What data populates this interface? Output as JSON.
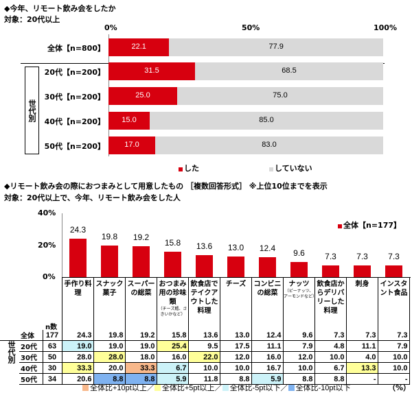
{
  "colors": {
    "did": "#d7000f",
    "not": "#d9d9d9",
    "plus10": "#f8b88b",
    "plus5": "#ffff99",
    "minus5": "#ccf2f8",
    "minus10": "#7fb2f0"
  },
  "chart_data": [
    {
      "type": "bar",
      "orientation": "horizontal",
      "stacked": true,
      "title": "◆今年、リモート飲み会をしたか",
      "subtitle": "対象：20代以上",
      "xticks": [
        "0%",
        "50%",
        "100%"
      ],
      "xlim": [
        0,
        100
      ],
      "group_label": "世代別",
      "categories": [
        "全体【n=800】",
        "20代【n=200】",
        "30代【n=200】",
        "40代【n=200】",
        "50代【n=200】"
      ],
      "series": [
        {
          "name": "した",
          "values": [
            22.1,
            31.5,
            25.0,
            15.0,
            17.0
          ]
        },
        {
          "name": "していない",
          "values": [
            77.9,
            68.5,
            75.0,
            85.0,
            83.0
          ]
        }
      ],
      "legend": "bottom"
    },
    {
      "type": "bar",
      "title": "◆リモート飲み会の際におつまみとして用意したもの ［複数回答形式］ ※上位10位までを表示",
      "subtitle": "対象：20代以上で、今年、リモート飲み会をした人",
      "yticks": [
        "40%",
        "20%",
        "0%"
      ],
      "ylim": [
        0,
        40
      ],
      "categories": [
        {
          "main": "手作り料理"
        },
        {
          "main": "スナック菓子"
        },
        {
          "main": "スーパーの総菜"
        },
        {
          "main": "おつまみ用の珍味類",
          "note": "（チーズ鱈、さきいかなど）"
        },
        {
          "main": "飲食店でテイクアウトした料理"
        },
        {
          "main": "チーズ"
        },
        {
          "main": "コンビニの総菜"
        },
        {
          "main": "ナッツ",
          "note": "（ピーナッツ、アーモンドなど）"
        },
        {
          "main": "飲食店からデリバリーした料理"
        },
        {
          "main": "刺身"
        },
        {
          "main": "インスタント食品"
        }
      ],
      "series": [
        {
          "name": "全体【n=177】",
          "values": [
            24.3,
            19.8,
            19.2,
            15.8,
            13.6,
            13.0,
            12.4,
            9.6,
            7.3,
            7.3,
            7.3
          ]
        }
      ],
      "legend": "top-right"
    }
  ],
  "table": {
    "n_header": "n数",
    "group_label": "世代別",
    "unit": "（%）",
    "rows": [
      {
        "label": "全体",
        "n": "177",
        "values": [
          "24.3",
          "19.8",
          "19.2",
          "15.8",
          "13.6",
          "13.0",
          "12.4",
          "9.6",
          "7.3",
          "7.3",
          "7.3"
        ],
        "hl": [
          "",
          "",
          "",
          "",
          "",
          "",
          "",
          "",
          "",
          "",
          ""
        ]
      },
      {
        "label": "20代",
        "n": "63",
        "values": [
          "19.0",
          "19.0",
          "19.0",
          "25.4",
          "9.5",
          "17.5",
          "11.1",
          "7.9",
          "4.8",
          "11.1",
          "7.9"
        ],
        "hl": [
          "minus5",
          "",
          "",
          "plus5",
          "",
          "",
          "",
          "",
          "",
          "",
          ""
        ]
      },
      {
        "label": "30代",
        "n": "50",
        "values": [
          "28.0",
          "28.0",
          "18.0",
          "16.0",
          "22.0",
          "12.0",
          "16.0",
          "12.0",
          "10.0",
          "4.0",
          "10.0"
        ],
        "hl": [
          "",
          "plus5",
          "",
          "",
          "plus5",
          "",
          "",
          "",
          "",
          "",
          ""
        ]
      },
      {
        "label": "40代",
        "n": "30",
        "values": [
          "33.3",
          "20.0",
          "33.3",
          "6.7",
          "10.0",
          "10.0",
          "16.7",
          "10.0",
          "6.7",
          "13.3",
          "10.0"
        ],
        "hl": [
          "plus5",
          "",
          "plus10",
          "minus5",
          "",
          "",
          "",
          "",
          "",
          "plus5",
          ""
        ]
      },
      {
        "label": "50代",
        "n": "34",
        "values": [
          "20.6",
          "8.8",
          "8.8",
          "5.9",
          "11.8",
          "8.8",
          "5.9",
          "8.8",
          "8.8",
          "-",
          "-"
        ],
        "hl": [
          "",
          "minus10",
          "minus10",
          "minus5",
          "",
          "",
          "minus5",
          "",
          "",
          "",
          ""
        ]
      }
    ],
    "legend": [
      {
        "key": "plus10",
        "label": "全体比+10pt以上／"
      },
      {
        "key": "plus5",
        "label": "全体比+5pt以上／"
      },
      {
        "key": "minus5",
        "label": "全体比-5pt以下／"
      },
      {
        "key": "minus10",
        "label": "全体比-10pt以下"
      }
    ]
  }
}
